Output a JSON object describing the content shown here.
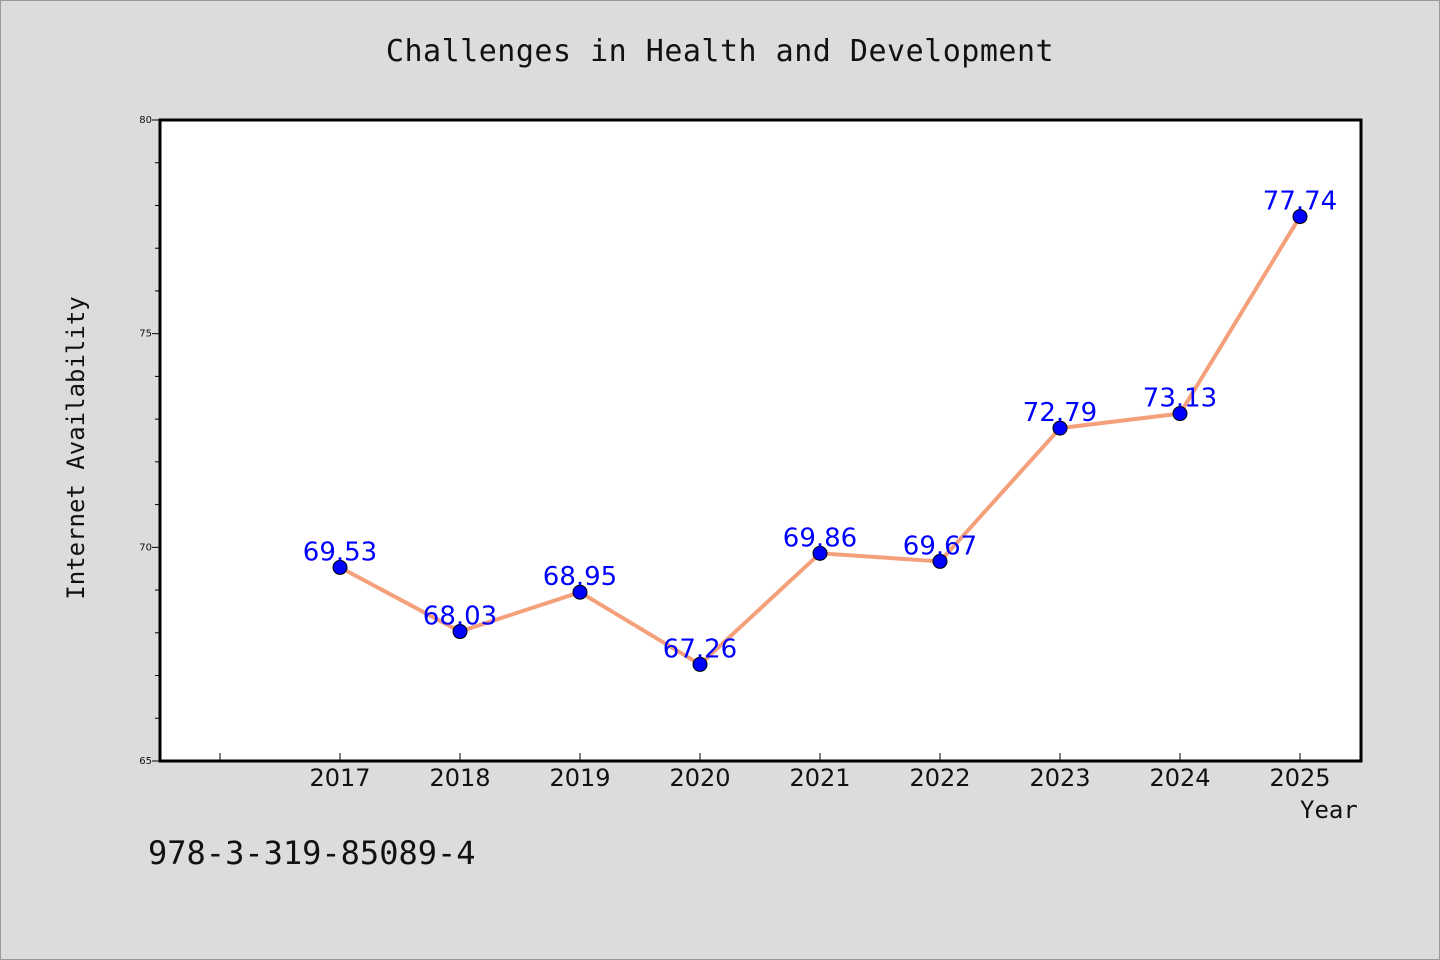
{
  "chart_data": {
    "type": "line",
    "title": "Challenges in Health and Development",
    "xlabel": "Year",
    "ylabel": "Internet Availability",
    "x": [
      "2017",
      "2018",
      "2019",
      "2020",
      "2021",
      "2022",
      "2023",
      "2024",
      "2025"
    ],
    "series": [
      {
        "values": [
          69.53,
          68.03,
          68.95,
          67.26,
          69.86,
          69.67,
          72.79,
          73.13,
          77.74
        ],
        "labels": [
          "69.53",
          "68.03",
          "68.95",
          "67.26",
          "69.86",
          "69.67",
          "72.79",
          "73.13",
          "77.74"
        ],
        "line_color": "#f4a07a",
        "marker_color": "#0000ff",
        "label_color": "#0000ff"
      }
    ],
    "ylim": [
      65,
      80
    ],
    "yticks": [
      "65",
      "70",
      "75",
      "80"
    ],
    "grid": false,
    "legend": "none"
  },
  "footer_text": "978-3-319-85089-4",
  "colors": {
    "background": "#dcdcdc",
    "plot_area": "#ffffff",
    "axis": "#000000"
  }
}
